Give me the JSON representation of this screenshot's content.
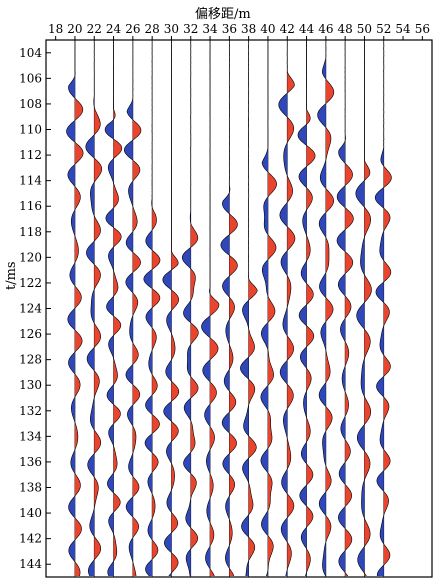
{
  "chart_data": {
    "type": "seismic_wiggle",
    "xlabel": "偏移距/m",
    "ylabel": "t/ms",
    "x_ticks": [
      18,
      20,
      22,
      24,
      26,
      28,
      30,
      32,
      34,
      36,
      38,
      40,
      42,
      44,
      46,
      48,
      50,
      52,
      54,
      56
    ],
    "y_ticks": [
      104,
      106,
      108,
      110,
      112,
      114,
      116,
      118,
      120,
      122,
      124,
      126,
      128,
      130,
      132,
      134,
      136,
      138,
      140,
      142,
      144
    ],
    "xlim": [
      17,
      57
    ],
    "ylim": [
      103,
      145
    ],
    "trace_offsets": [
      20,
      22,
      24,
      26,
      28,
      30,
      32,
      34,
      36,
      38,
      40,
      42,
      44,
      46,
      48,
      50,
      52
    ],
    "first_arrival_ms": [
      106,
      108,
      109,
      108,
      116,
      120,
      117,
      123,
      115,
      122,
      112,
      106,
      109,
      105,
      111,
      113,
      112
    ],
    "colors": {
      "positive_fill": "#e8442e",
      "negative_fill": "#2f47b8",
      "trace_line": "#000000",
      "grid_line": "#000000"
    }
  }
}
